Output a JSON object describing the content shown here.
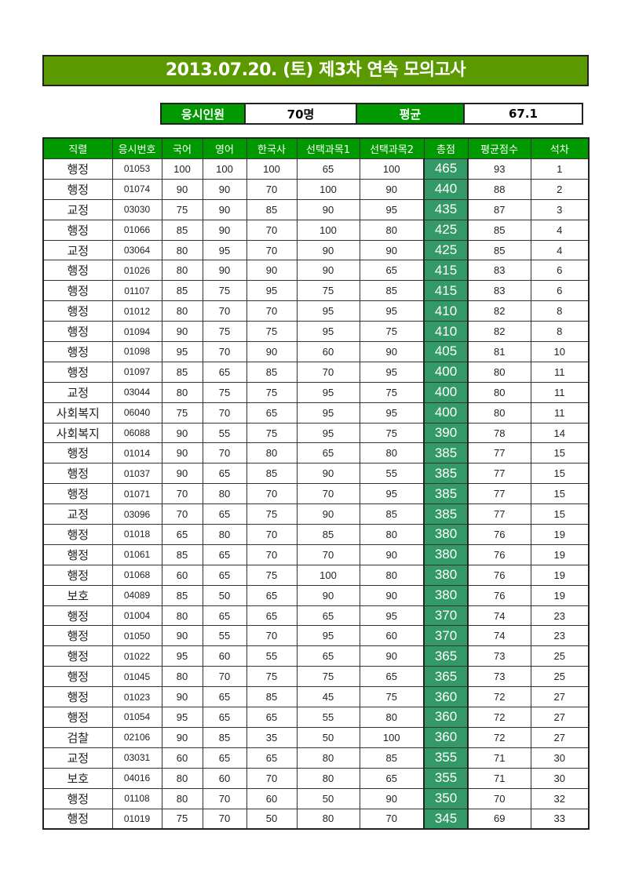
{
  "title": "2013.07.20. (토) 제3차 연속 모의고사",
  "summary": {
    "examinees_label": "응시인원",
    "examinees_value": "70명",
    "average_label": "평균",
    "average_value": "67.1"
  },
  "colors": {
    "title_bg": "#5a9a00",
    "header_bg": "#009a00",
    "total_bg": "#339966"
  },
  "table": {
    "headers": [
      "직렬",
      "응시번호",
      "국어",
      "영어",
      "한국사",
      "선택과목1",
      "선택과목2",
      "총점",
      "평균점수",
      "석차"
    ],
    "rows": [
      [
        "행정",
        "01053",
        "100",
        "100",
        "100",
        "65",
        "100",
        "465",
        "93",
        "1"
      ],
      [
        "행정",
        "01074",
        "90",
        "90",
        "70",
        "100",
        "90",
        "440",
        "88",
        "2"
      ],
      [
        "교정",
        "03030",
        "75",
        "90",
        "85",
        "90",
        "95",
        "435",
        "87",
        "3"
      ],
      [
        "행정",
        "01066",
        "85",
        "90",
        "70",
        "100",
        "80",
        "425",
        "85",
        "4"
      ],
      [
        "교정",
        "03064",
        "80",
        "95",
        "70",
        "90",
        "90",
        "425",
        "85",
        "4"
      ],
      [
        "행정",
        "01026",
        "80",
        "90",
        "90",
        "90",
        "65",
        "415",
        "83",
        "6"
      ],
      [
        "행정",
        "01107",
        "85",
        "75",
        "95",
        "75",
        "85",
        "415",
        "83",
        "6"
      ],
      [
        "행정",
        "01012",
        "80",
        "70",
        "70",
        "95",
        "95",
        "410",
        "82",
        "8"
      ],
      [
        "행정",
        "01094",
        "90",
        "75",
        "75",
        "95",
        "75",
        "410",
        "82",
        "8"
      ],
      [
        "행정",
        "01098",
        "95",
        "70",
        "90",
        "60",
        "90",
        "405",
        "81",
        "10"
      ],
      [
        "행정",
        "01097",
        "85",
        "65",
        "85",
        "70",
        "95",
        "400",
        "80",
        "11"
      ],
      [
        "교정",
        "03044",
        "80",
        "75",
        "75",
        "95",
        "75",
        "400",
        "80",
        "11"
      ],
      [
        "사회복지",
        "06040",
        "75",
        "70",
        "65",
        "95",
        "95",
        "400",
        "80",
        "11"
      ],
      [
        "사회복지",
        "06088",
        "90",
        "55",
        "75",
        "95",
        "75",
        "390",
        "78",
        "14"
      ],
      [
        "행정",
        "01014",
        "90",
        "70",
        "80",
        "65",
        "80",
        "385",
        "77",
        "15"
      ],
      [
        "행정",
        "01037",
        "90",
        "65",
        "85",
        "90",
        "55",
        "385",
        "77",
        "15"
      ],
      [
        "행정",
        "01071",
        "70",
        "80",
        "70",
        "70",
        "95",
        "385",
        "77",
        "15"
      ],
      [
        "교정",
        "03096",
        "70",
        "65",
        "75",
        "90",
        "85",
        "385",
        "77",
        "15"
      ],
      [
        "행정",
        "01018",
        "65",
        "80",
        "70",
        "85",
        "80",
        "380",
        "76",
        "19"
      ],
      [
        "행정",
        "01061",
        "85",
        "65",
        "70",
        "70",
        "90",
        "380",
        "76",
        "19"
      ],
      [
        "행정",
        "01068",
        "60",
        "65",
        "75",
        "100",
        "80",
        "380",
        "76",
        "19"
      ],
      [
        "보호",
        "04089",
        "85",
        "50",
        "65",
        "90",
        "90",
        "380",
        "76",
        "19"
      ],
      [
        "행정",
        "01004",
        "80",
        "65",
        "65",
        "65",
        "95",
        "370",
        "74",
        "23"
      ],
      [
        "행정",
        "01050",
        "90",
        "55",
        "70",
        "95",
        "60",
        "370",
        "74",
        "23"
      ],
      [
        "행정",
        "01022",
        "95",
        "60",
        "55",
        "65",
        "90",
        "365",
        "73",
        "25"
      ],
      [
        "행정",
        "01045",
        "80",
        "70",
        "75",
        "75",
        "65",
        "365",
        "73",
        "25"
      ],
      [
        "행정",
        "01023",
        "90",
        "65",
        "85",
        "45",
        "75",
        "360",
        "72",
        "27"
      ],
      [
        "행정",
        "01054",
        "95",
        "65",
        "65",
        "55",
        "80",
        "360",
        "72",
        "27"
      ],
      [
        "검찰",
        "02106",
        "90",
        "85",
        "35",
        "50",
        "100",
        "360",
        "72",
        "27"
      ],
      [
        "교정",
        "03031",
        "60",
        "65",
        "65",
        "80",
        "85",
        "355",
        "71",
        "30"
      ],
      [
        "보호",
        "04016",
        "80",
        "60",
        "70",
        "80",
        "65",
        "355",
        "71",
        "30"
      ],
      [
        "행정",
        "01108",
        "80",
        "70",
        "60",
        "50",
        "90",
        "350",
        "70",
        "32"
      ],
      [
        "행정",
        "01019",
        "75",
        "70",
        "50",
        "80",
        "70",
        "345",
        "69",
        "33"
      ]
    ]
  }
}
